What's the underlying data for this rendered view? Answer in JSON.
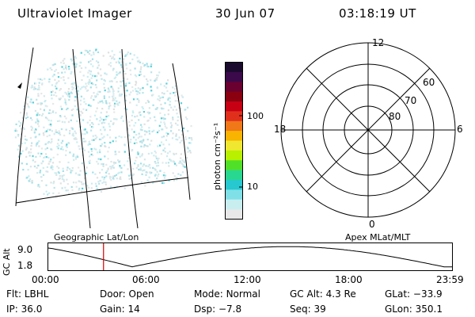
{
  "header": {
    "instrument": "Ultraviolet Imager",
    "date": "30 Jun 07",
    "time": "03:18:19 UT"
  },
  "colorbar": {
    "label": "photon cm⁻²s⁻¹",
    "ticks": [
      "100",
      "10"
    ],
    "colors": [
      "#1a0a2e",
      "#3b0a4a",
      "#6a0030",
      "#8a0010",
      "#c80014",
      "#e0301c",
      "#f07818",
      "#f8b400",
      "#f0e830",
      "#b8f000",
      "#50e028",
      "#28d890",
      "#28c8d0",
      "#80e0e8",
      "#c8eef0",
      "#e8e8e8"
    ]
  },
  "polar": {
    "hour_labels": {
      "top": "12",
      "bottom": "0",
      "left": "18",
      "right": "6"
    },
    "lat_labels": [
      "60",
      "70",
      "80"
    ]
  },
  "grid_labels": {
    "left": "Geographic Lat/Lon",
    "right": "Apex MLat/MLT"
  },
  "altitude_plot": {
    "ylabel": "GC Alt",
    "yticks": [
      "9.0",
      "1.8"
    ],
    "xticks": [
      "00:00",
      "06:00",
      "12:00",
      "18:00",
      "23:59"
    ],
    "current_marker_hour": 3.3,
    "marker_color": "#d00000"
  },
  "status": {
    "row1": [
      {
        "key": "Flt:",
        "value": "LBHL"
      },
      {
        "key": "Door:",
        "value": "Open"
      },
      {
        "key": "Mode:",
        "value": "Normal"
      },
      {
        "key": "GC Alt:",
        "value": "4.3 Re"
      },
      {
        "key": "GLat:",
        "value": "−33.9"
      }
    ],
    "row2": [
      {
        "key": "IP:",
        "value": "36.0"
      },
      {
        "key": "Gain:",
        "value": "14"
      },
      {
        "key": "Dsp:",
        "value": "−7.8"
      },
      {
        "key": "Seq:",
        "value": "39"
      },
      {
        "key": "GLon:",
        "value": "350.1"
      }
    ]
  }
}
